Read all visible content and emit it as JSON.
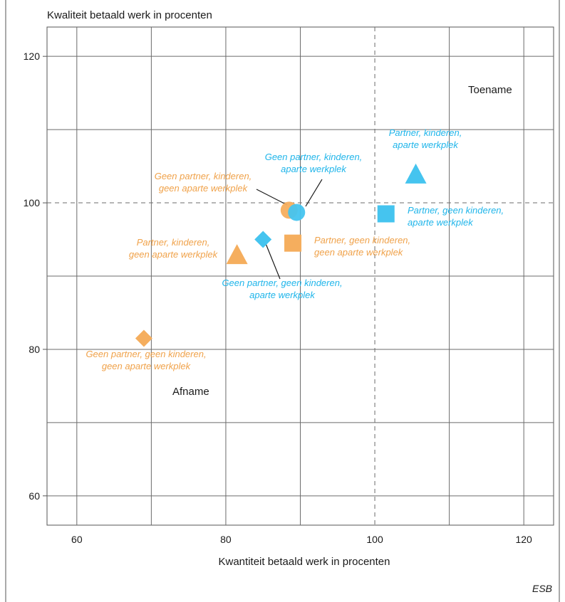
{
  "chart_data": {
    "type": "scatter",
    "title": "",
    "ylabel": "Kwaliteit betaald werk in procenten",
    "xlabel": "Kwantiteit betaald werk in procenten",
    "xlim": [
      56,
      124
    ],
    "ylim": [
      56,
      124
    ],
    "x_ticks": [
      60,
      80,
      100,
      120
    ],
    "y_ticks": [
      60,
      80,
      100,
      120
    ],
    "grid": true,
    "reference_lines": {
      "x": 100,
      "y": 100
    },
    "quadrant_labels": {
      "top_right": "Toename",
      "bottom_left": "Afname"
    },
    "source": "ESB",
    "colors": {
      "orange": "#f5ae5e",
      "blue": "#45c4ef",
      "label_orange": "#f0a24a",
      "label_blue": "#1fb5ea"
    },
    "points": [
      {
        "x": 88.5,
        "y": 99,
        "shape": "circle",
        "color": "orange",
        "label": [
          "Geen partner, kinderen,",
          "geen aparte werkplek"
        ]
      },
      {
        "x": 89.5,
        "y": 98.7,
        "shape": "circle",
        "color": "blue",
        "label": [
          "Geen partner, kinderen,",
          "aparte werkplek"
        ]
      },
      {
        "x": 105.5,
        "y": 104,
        "shape": "triangle",
        "color": "blue",
        "label": [
          "Partner, kinderen,",
          "aparte werkplek"
        ]
      },
      {
        "x": 101.5,
        "y": 98.5,
        "shape": "square",
        "color": "blue",
        "label": [
          "Partner, geen kinderen,",
          "aparte werkplek"
        ]
      },
      {
        "x": 81.5,
        "y": 93,
        "shape": "triangle",
        "color": "orange",
        "label": [
          "Partner, kinderen,",
          "geen aparte werkplek"
        ]
      },
      {
        "x": 85,
        "y": 95,
        "shape": "diamond",
        "color": "blue",
        "label": [
          "Geen partner, geen kinderen,",
          "aparte werkplek"
        ]
      },
      {
        "x": 89,
        "y": 94.5,
        "shape": "square",
        "color": "orange",
        "label": [
          "Partner, geen kinderen,",
          "geen aparte werkplek"
        ]
      },
      {
        "x": 69,
        "y": 81.5,
        "shape": "diamond",
        "color": "orange",
        "label": [
          "Geen partner, geen kinderen,",
          "geen aparte werkplek"
        ]
      }
    ]
  }
}
